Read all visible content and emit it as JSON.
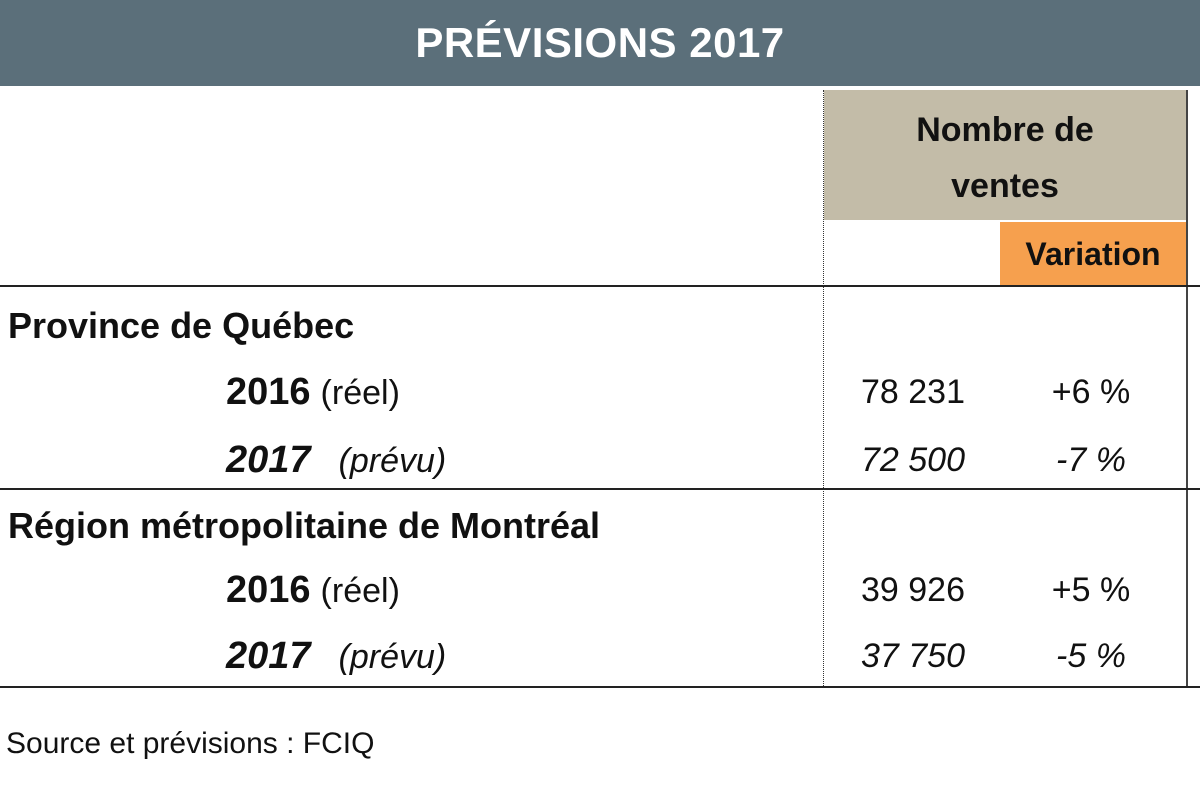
{
  "title": "PRÉVISIONS 2017",
  "columns": {
    "sales_header": "Nombre de\nventes",
    "variation_header": "Variation"
  },
  "sections": [
    {
      "name": "Province de Québec",
      "rows": [
        {
          "year": "2016",
          "qualifier": "(réel)",
          "sales": "78 231",
          "variation": "+6 %"
        },
        {
          "year": "2017",
          "qualifier": "(prévu)",
          "sales": "72 500",
          "variation": "-7 %"
        }
      ]
    },
    {
      "name": "Région métropolitaine de Montréal",
      "rows": [
        {
          "year": "2016",
          "qualifier": "(réel)",
          "sales": "39 926",
          "variation": "+5 %"
        },
        {
          "year": "2017",
          "qualifier": "(prévu)",
          "sales": "37 750",
          "variation": "-5 %"
        }
      ]
    }
  ],
  "source": "Source et prévisions : FCIQ",
  "colors": {
    "title_bg": "#5b6f7a",
    "sales_header_bg": "#c3bca8",
    "variation_header_bg": "#f6a04e"
  },
  "chart_data": {
    "type": "table",
    "title": "PRÉVISIONS 2017",
    "columns": [
      "Nombre de ventes",
      "Variation"
    ],
    "rows": [
      {
        "region": "Province de Québec",
        "period": "2016 (réel)",
        "sales": 78231,
        "variation_pct": 6
      },
      {
        "region": "Province de Québec",
        "period": "2017 (prévu)",
        "sales": 72500,
        "variation_pct": -7
      },
      {
        "region": "Région métropolitaine de Montréal",
        "period": "2016 (réel)",
        "sales": 39926,
        "variation_pct": 5
      },
      {
        "region": "Région métropolitaine de Montréal",
        "period": "2017 (prévu)",
        "sales": 37750,
        "variation_pct": -5
      }
    ]
  }
}
